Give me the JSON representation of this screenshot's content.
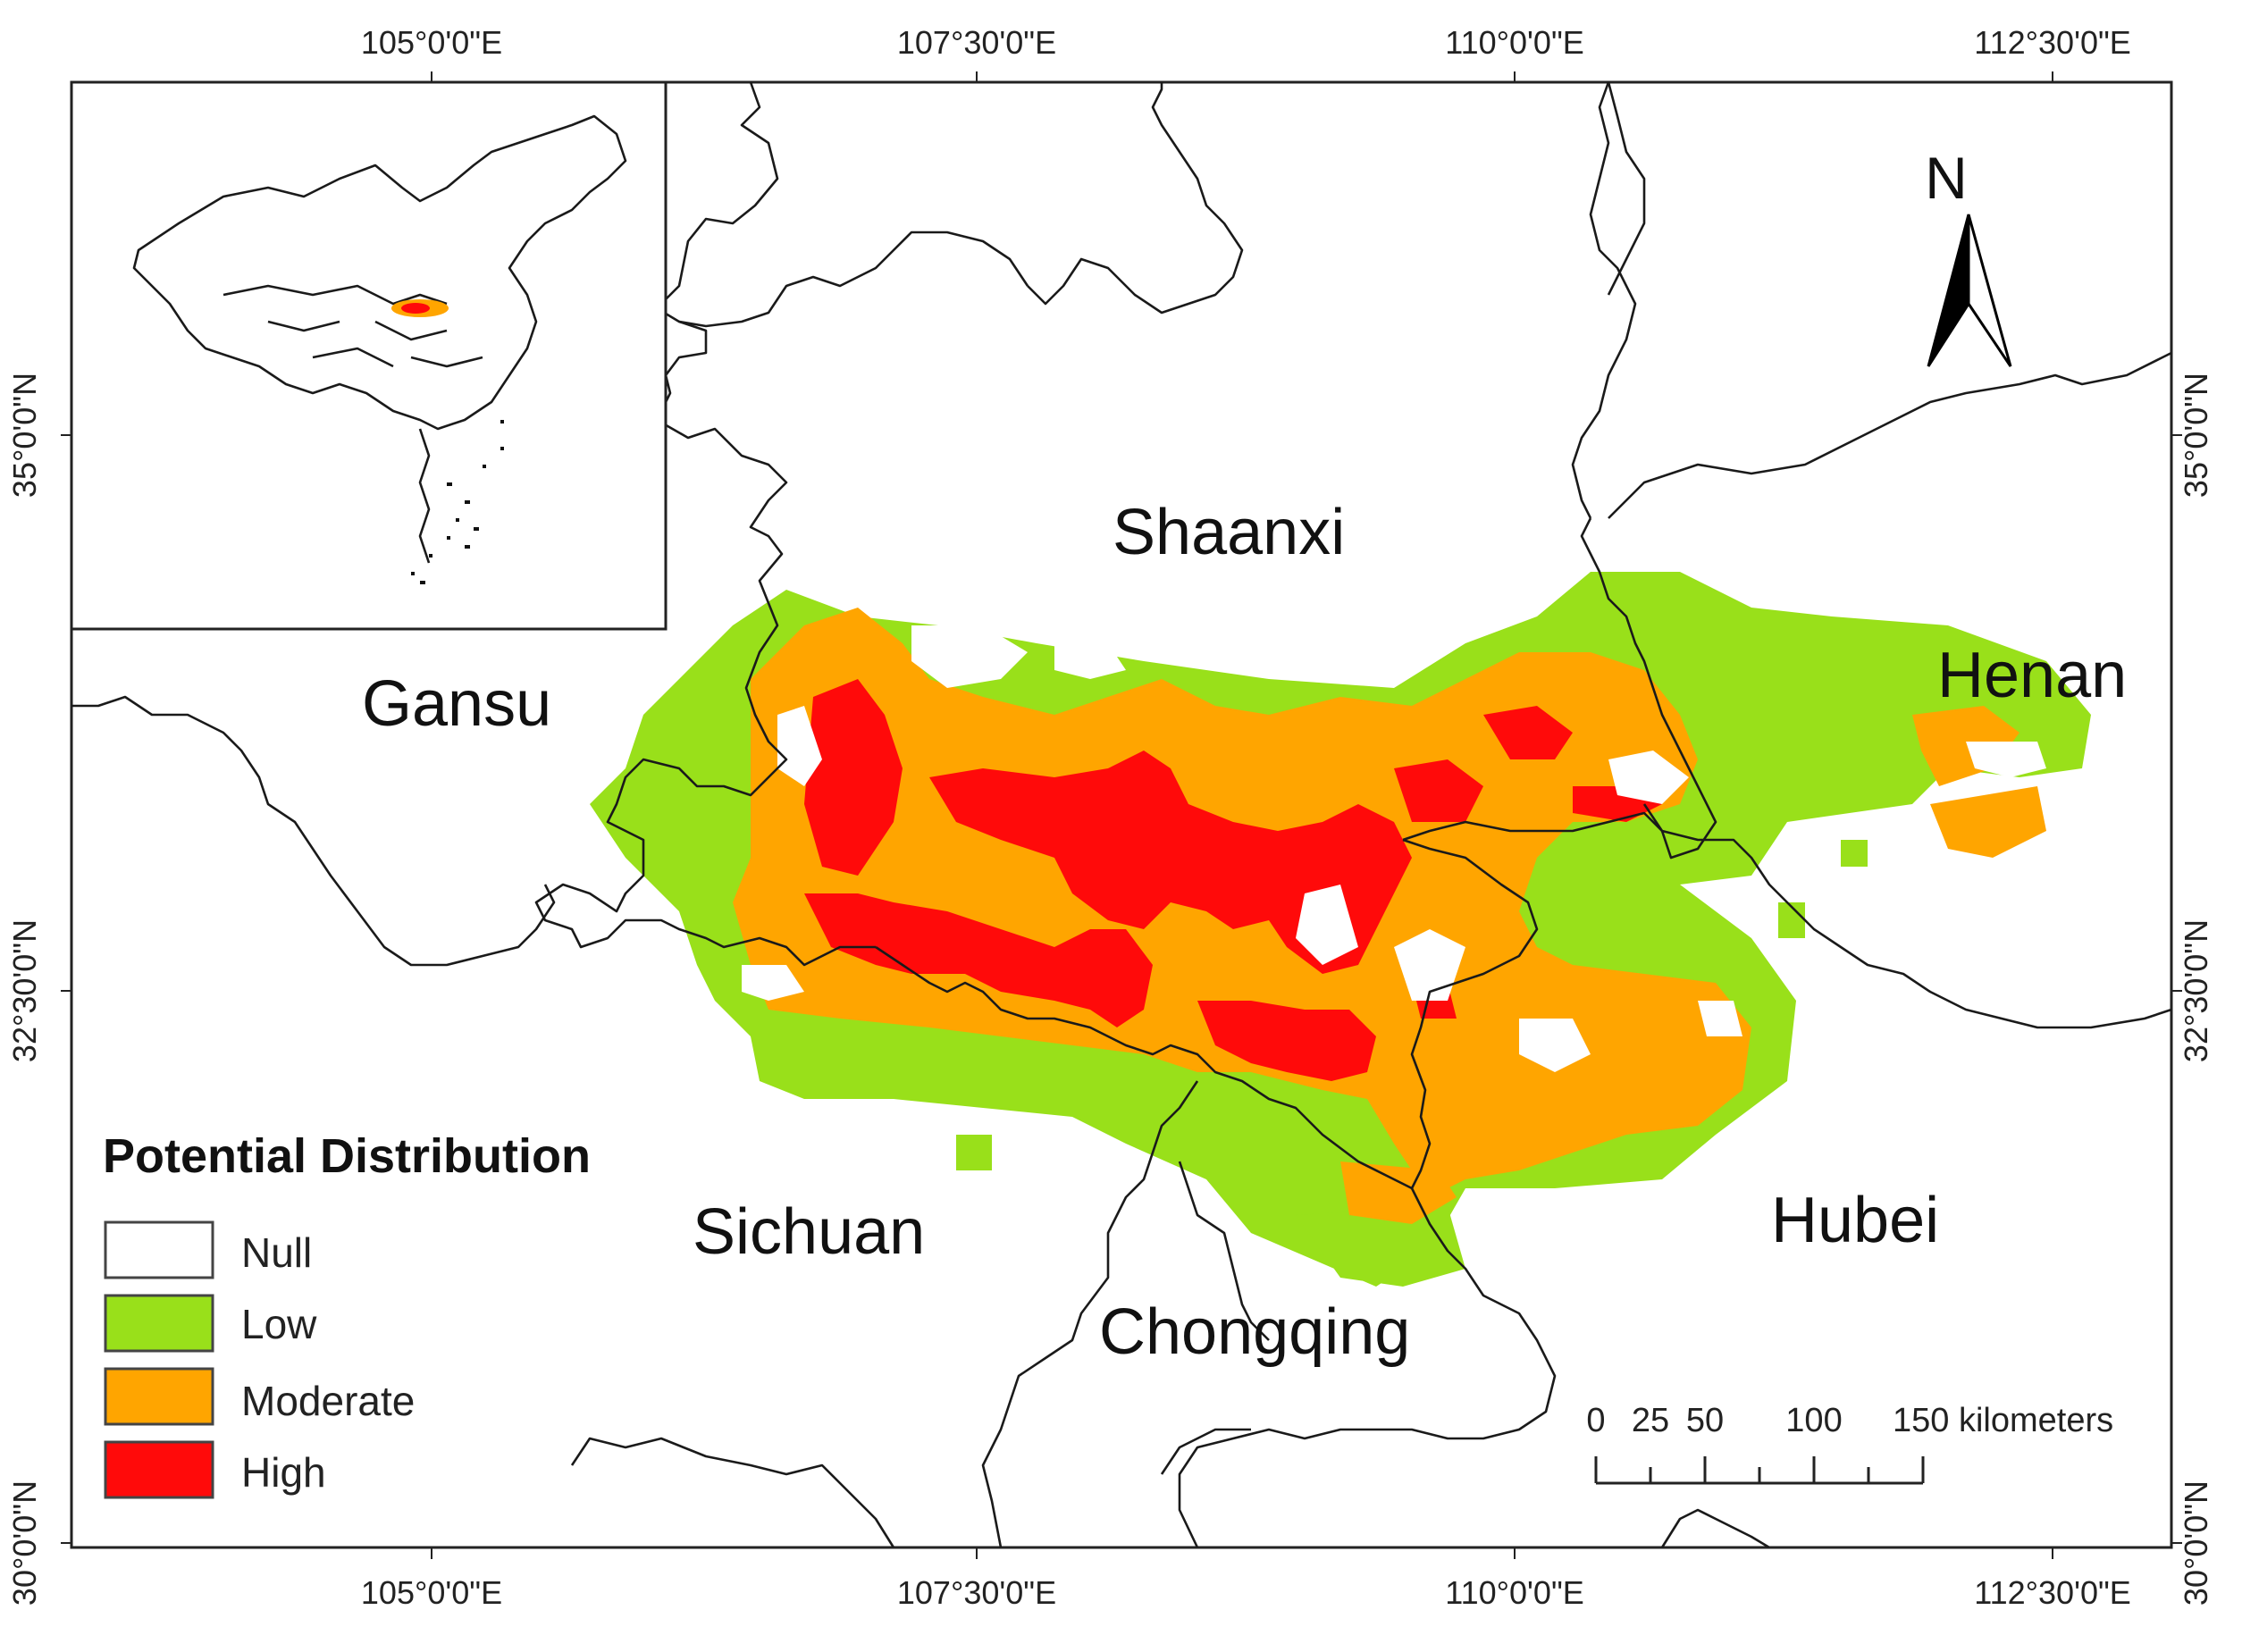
{
  "map": {
    "longitude_ticks": [
      "105°0'0\"E",
      "107°30'0\"E",
      "110°0'0\"E",
      "112°30'0\"E"
    ],
    "latitude_ticks": [
      "35°0'0\"N",
      "32°30'0\"N",
      "30°0'0\"N"
    ],
    "provinces": [
      "Shaanxi",
      "Gansu",
      "Henan",
      "Sichuan",
      "Hubei",
      "Chongqing"
    ],
    "north_arrow_label": "N"
  },
  "legend": {
    "title": "Potential Distribution",
    "items": [
      {
        "label": "Null",
        "color": "#ffffff"
      },
      {
        "label": "Low",
        "color": "#99e01a"
      },
      {
        "label": "Moderate",
        "color": "#ffa500"
      },
      {
        "label": "High",
        "color": "#ff0a0a"
      }
    ]
  },
  "scale_bar": {
    "labels": [
      "0",
      "25",
      "50",
      "100",
      "150 kilometers"
    ]
  }
}
